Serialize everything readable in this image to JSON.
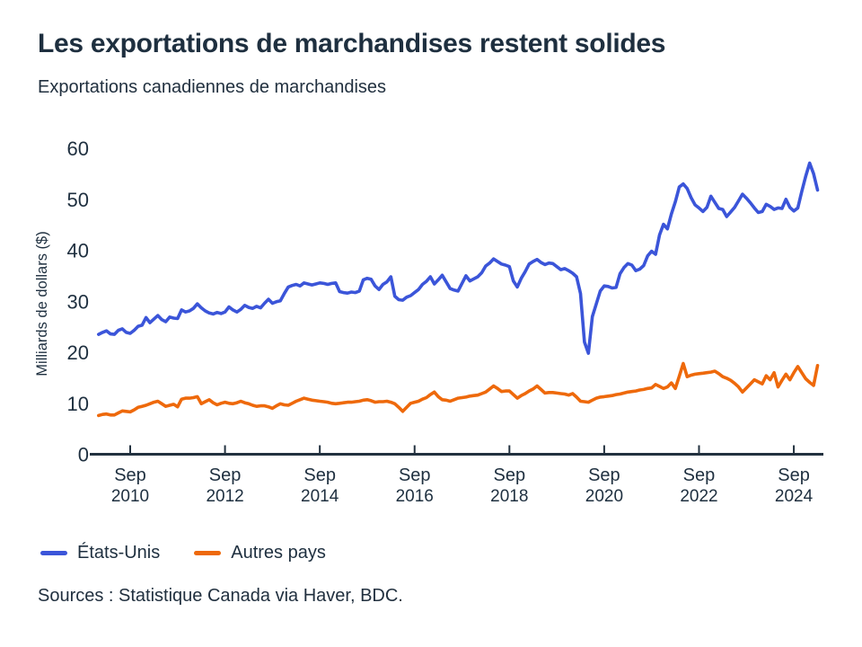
{
  "header": {
    "title": "Les exportations de marchandises restent solides",
    "subtitle": "Exportations canadiennes de marchandises"
  },
  "chart_data": {
    "type": "line",
    "title": "Exportations canadiennes de marchandises",
    "xlabel": "",
    "ylabel": "Milliards de dollars ($)",
    "ylim": [
      0,
      60
    ],
    "yticks": [
      0,
      10,
      20,
      30,
      40,
      50,
      60
    ],
    "grid": false,
    "legend_position": "bottom-left",
    "x_start": "2010-01",
    "x_end": "2025-03",
    "frequency": "monthly",
    "xticks": [
      {
        "line1": "Sep",
        "line2": "2010"
      },
      {
        "line1": "Sep",
        "line2": "2012"
      },
      {
        "line1": "Sep",
        "line2": "2014"
      },
      {
        "line1": "Sep",
        "line2": "2016"
      },
      {
        "line1": "Sep",
        "line2": "2018"
      },
      {
        "line1": "Sep",
        "line2": "2020"
      },
      {
        "line1": "Sep",
        "line2": "2022"
      },
      {
        "line1": "Sep",
        "line2": "2024"
      }
    ],
    "series": [
      {
        "name": "États-Unis",
        "color": "#3b55d9",
        "values": [
          23.5,
          23.9,
          24.2,
          23.6,
          23.5,
          24.3,
          24.6,
          23.9,
          23.7,
          24.3,
          25.1,
          25.3,
          26.8,
          25.8,
          26.5,
          27.2,
          26.4,
          26.0,
          26.9,
          26.7,
          26.6,
          28.3,
          27.9,
          28.1,
          28.6,
          29.5,
          28.7,
          28.1,
          27.7,
          27.5,
          27.8,
          27.6,
          27.9,
          28.9,
          28.3,
          27.9,
          28.4,
          29.2,
          28.8,
          28.6,
          29.0,
          28.7,
          29.6,
          30.4,
          29.6,
          29.9,
          30.1,
          31.5,
          32.8,
          33.1,
          33.3,
          33.0,
          33.6,
          33.4,
          33.2,
          33.4,
          33.6,
          33.5,
          33.3,
          33.5,
          33.6,
          31.9,
          31.7,
          31.6,
          31.8,
          31.7,
          32.0,
          34.2,
          34.5,
          34.3,
          33.0,
          32.3,
          33.3,
          33.8,
          34.8,
          31.0,
          30.3,
          30.2,
          30.8,
          31.1,
          31.7,
          32.3,
          33.3,
          33.9,
          34.8,
          33.4,
          34.2,
          35.1,
          33.8,
          32.5,
          32.2,
          32.0,
          33.5,
          35.0,
          34.0,
          34.4,
          34.8,
          35.6,
          36.9,
          37.5,
          38.3,
          37.8,
          37.3,
          37.1,
          36.8,
          34.0,
          32.8,
          34.5,
          35.8,
          37.3,
          37.8,
          38.2,
          37.6,
          37.2,
          37.5,
          37.4,
          36.8,
          36.2,
          36.4,
          36.0,
          35.5,
          34.8,
          31.5,
          22.0,
          19.8,
          27.0,
          29.5,
          32.0,
          33.0,
          32.9,
          32.6,
          32.7,
          35.4,
          36.6,
          37.4,
          37.1,
          36.0,
          36.3,
          37.0,
          38.9,
          39.8,
          39.2,
          43.0,
          45.1,
          44.2,
          47.1,
          49.5,
          52.4,
          53.0,
          52.1,
          50.3,
          48.9,
          48.3,
          47.6,
          48.4,
          50.6,
          49.4,
          48.2,
          48.0,
          46.6,
          47.5,
          48.4,
          49.7,
          51.0,
          50.2,
          49.3,
          48.3,
          47.4,
          47.6,
          49.0,
          48.6,
          48.0,
          48.3,
          48.2,
          50.0,
          48.4,
          47.7,
          48.3,
          51.5,
          54.5,
          57.1,
          55.0,
          51.8
        ]
      },
      {
        "name": "Autres pays",
        "color": "#ee690b",
        "values": [
          7.6,
          7.8,
          7.9,
          7.7,
          7.7,
          8.1,
          8.5,
          8.4,
          8.3,
          8.7,
          9.2,
          9.4,
          9.6,
          9.9,
          10.2,
          10.4,
          9.9,
          9.4,
          9.6,
          9.8,
          9.3,
          10.8,
          11.0,
          11.0,
          11.1,
          11.3,
          9.9,
          10.3,
          10.7,
          10.1,
          9.7,
          10.0,
          10.2,
          10.0,
          9.9,
          10.1,
          10.4,
          10.1,
          9.9,
          9.6,
          9.4,
          9.5,
          9.5,
          9.3,
          9.0,
          9.5,
          9.9,
          9.7,
          9.6,
          10.0,
          10.4,
          10.7,
          11.0,
          10.8,
          10.6,
          10.5,
          10.4,
          10.3,
          10.2,
          10.0,
          9.9,
          10.0,
          10.1,
          10.2,
          10.2,
          10.3,
          10.4,
          10.6,
          10.7,
          10.5,
          10.2,
          10.3,
          10.3,
          10.4,
          10.2,
          9.9,
          9.2,
          8.4,
          9.2,
          10.0,
          10.2,
          10.4,
          10.8,
          11.1,
          11.7,
          12.2,
          11.3,
          10.7,
          10.6,
          10.4,
          10.7,
          11.0,
          11.1,
          11.2,
          11.4,
          11.5,
          11.6,
          11.9,
          12.2,
          12.8,
          13.4,
          12.9,
          12.3,
          12.4,
          12.4,
          11.7,
          11.0,
          11.5,
          11.9,
          12.4,
          12.8,
          13.4,
          12.7,
          12.0,
          12.1,
          12.1,
          12.0,
          11.9,
          11.8,
          11.6,
          11.9,
          11.2,
          10.4,
          10.3,
          10.2,
          10.6,
          11.0,
          11.2,
          11.3,
          11.4,
          11.5,
          11.7,
          11.8,
          12.0,
          12.2,
          12.3,
          12.4,
          12.6,
          12.7,
          12.9,
          13.0,
          13.7,
          13.3,
          12.9,
          13.2,
          14.0,
          12.9,
          15.3,
          17.8,
          15.2,
          15.5,
          15.7,
          15.8,
          15.9,
          16.0,
          16.1,
          16.3,
          15.8,
          15.2,
          14.9,
          14.5,
          13.9,
          13.2,
          12.2,
          13.0,
          13.8,
          14.6,
          14.2,
          13.8,
          15.4,
          14.6,
          16.0,
          13.2,
          14.5,
          15.7,
          14.6,
          16.0,
          17.2,
          16.0,
          14.8,
          14.1,
          13.5,
          17.4
        ]
      }
    ]
  },
  "legend": {
    "items": [
      {
        "label": "États-Unis"
      },
      {
        "label": "Autres pays"
      }
    ]
  },
  "footer": {
    "source": "Sources : Statistique Canada via Haver, BDC."
  },
  "style": {
    "background": "#ffffff",
    "text_color": "#1e2f3f",
    "axis_color": "#22313f",
    "line_blue": "#3b55d9",
    "line_orange": "#ee690b"
  }
}
